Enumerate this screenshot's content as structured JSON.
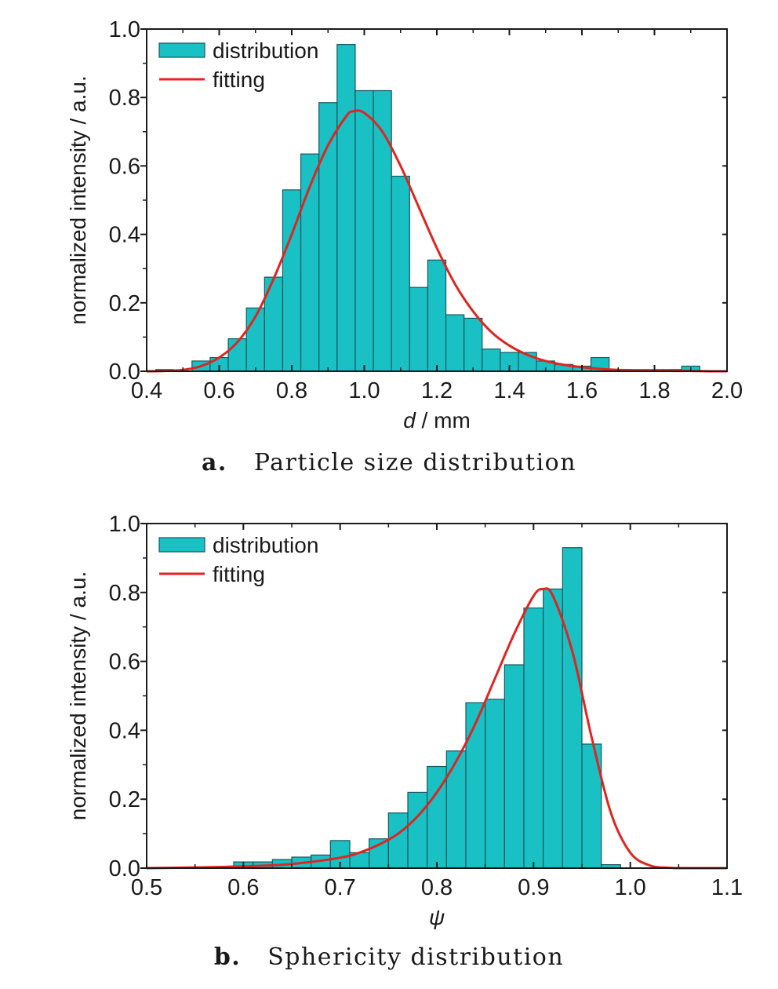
{
  "colors": {
    "bar_fill": "#19c0c4",
    "bar_stroke": "#16585c",
    "fit_line": "#e0241f",
    "axis": "#1a1a1a",
    "background": "#ffffff"
  },
  "chart_data": [
    {
      "type": "bar",
      "panel": "a",
      "caption_letter": "a.",
      "caption_text": "Particle size distribution",
      "xlabel_italic": "d",
      "xlabel_rest": " / mm",
      "ylabel": "normalized intensity / a.u.",
      "xlim": [
        0.4,
        2.0
      ],
      "ylim": [
        0.0,
        1.0
      ],
      "xticks": [
        "0.4",
        "0.6",
        "0.8",
        "1.0",
        "1.2",
        "1.4",
        "1.6",
        "1.8",
        "2.0"
      ],
      "yticks": [
        "0.0",
        "0.2",
        "0.4",
        "0.6",
        "0.8",
        "1.0"
      ],
      "legend": {
        "position": "top-left",
        "entries": [
          "distribution",
          "fitting"
        ]
      },
      "grid": false,
      "bin_width": 0.05,
      "bins": [
        {
          "x": 0.45,
          "y": 0.005
        },
        {
          "x": 0.55,
          "y": 0.03
        },
        {
          "x": 0.6,
          "y": 0.04
        },
        {
          "x": 0.65,
          "y": 0.095
        },
        {
          "x": 0.7,
          "y": 0.185
        },
        {
          "x": 0.75,
          "y": 0.275
        },
        {
          "x": 0.8,
          "y": 0.53
        },
        {
          "x": 0.85,
          "y": 0.635
        },
        {
          "x": 0.9,
          "y": 0.785
        },
        {
          "x": 0.95,
          "y": 0.955
        },
        {
          "x": 1.0,
          "y": 0.82
        },
        {
          "x": 1.05,
          "y": 0.82
        },
        {
          "x": 1.1,
          "y": 0.57
        },
        {
          "x": 1.15,
          "y": 0.245
        },
        {
          "x": 1.2,
          "y": 0.325
        },
        {
          "x": 1.25,
          "y": 0.165
        },
        {
          "x": 1.3,
          "y": 0.155
        },
        {
          "x": 1.35,
          "y": 0.065
        },
        {
          "x": 1.4,
          "y": 0.055
        },
        {
          "x": 1.45,
          "y": 0.055
        },
        {
          "x": 1.5,
          "y": 0.03
        },
        {
          "x": 1.55,
          "y": 0.02
        },
        {
          "x": 1.6,
          "y": 0.015
        },
        {
          "x": 1.65,
          "y": 0.04
        },
        {
          "x": 1.7,
          "y": 0.005
        },
        {
          "x": 1.75,
          "y": 0.005
        },
        {
          "x": 1.8,
          "y": 0.005
        },
        {
          "x": 1.85,
          "y": 0.005
        },
        {
          "x": 1.9,
          "y": 0.015
        }
      ],
      "fit": {
        "x": [
          0.4,
          0.45,
          0.5,
          0.55,
          0.6,
          0.65,
          0.7,
          0.75,
          0.8,
          0.85,
          0.9,
          0.95,
          0.97,
          1.0,
          1.05,
          1.1,
          1.15,
          1.2,
          1.25,
          1.3,
          1.35,
          1.4,
          1.45,
          1.5,
          1.55,
          1.6,
          1.65,
          1.7,
          1.75,
          1.8,
          1.85,
          1.9,
          1.95,
          2.0
        ],
        "y": [
          0.0,
          0.001,
          0.004,
          0.015,
          0.04,
          0.085,
          0.16,
          0.27,
          0.4,
          0.54,
          0.66,
          0.745,
          0.76,
          0.755,
          0.7,
          0.6,
          0.48,
          0.36,
          0.255,
          0.175,
          0.115,
          0.075,
          0.048,
          0.03,
          0.019,
          0.012,
          0.007,
          0.004,
          0.003,
          0.002,
          0.001,
          0.001,
          0.0,
          0.0
        ]
      }
    },
    {
      "type": "bar",
      "panel": "b",
      "caption_letter": "b.",
      "caption_text": "Sphericity distribution",
      "xlabel_italic": "ψ",
      "xlabel_rest": "",
      "ylabel": "normalized intensity / a.u.",
      "xlim": [
        0.5,
        1.1
      ],
      "ylim": [
        0.0,
        1.0
      ],
      "xticks": [
        "0.5",
        "0.6",
        "0.7",
        "0.8",
        "0.9",
        "1.0",
        "1.1"
      ],
      "yticks": [
        "0.0",
        "0.2",
        "0.4",
        "0.6",
        "0.8",
        "1.0"
      ],
      "legend": {
        "position": "top-left",
        "entries": [
          "distribution",
          "fitting"
        ]
      },
      "grid": false,
      "bin_width": 0.02,
      "bins": [
        {
          "x": 0.56,
          "y": 0.003
        },
        {
          "x": 0.58,
          "y": 0.003
        },
        {
          "x": 0.6,
          "y": 0.018
        },
        {
          "x": 0.62,
          "y": 0.018
        },
        {
          "x": 0.64,
          "y": 0.025
        },
        {
          "x": 0.66,
          "y": 0.032
        },
        {
          "x": 0.68,
          "y": 0.038
        },
        {
          "x": 0.7,
          "y": 0.08
        },
        {
          "x": 0.72,
          "y": 0.045
        },
        {
          "x": 0.74,
          "y": 0.085
        },
        {
          "x": 0.76,
          "y": 0.16
        },
        {
          "x": 0.78,
          "y": 0.22
        },
        {
          "x": 0.8,
          "y": 0.295
        },
        {
          "x": 0.82,
          "y": 0.34
        },
        {
          "x": 0.84,
          "y": 0.48
        },
        {
          "x": 0.86,
          "y": 0.49
        },
        {
          "x": 0.88,
          "y": 0.59
        },
        {
          "x": 0.9,
          "y": 0.755
        },
        {
          "x": 0.92,
          "y": 0.81
        },
        {
          "x": 0.94,
          "y": 0.93
        },
        {
          "x": 0.96,
          "y": 0.36
        },
        {
          "x": 0.98,
          "y": 0.01
        }
      ],
      "fit": {
        "x": [
          0.5,
          0.55,
          0.6,
          0.65,
          0.7,
          0.72,
          0.74,
          0.76,
          0.78,
          0.8,
          0.82,
          0.84,
          0.86,
          0.88,
          0.9,
          0.91,
          0.92,
          0.94,
          0.96,
          0.98,
          1.0,
          1.02,
          1.04,
          1.06,
          1.1
        ],
        "y": [
          0.0,
          0.002,
          0.005,
          0.012,
          0.03,
          0.045,
          0.068,
          0.1,
          0.15,
          0.22,
          0.31,
          0.42,
          0.55,
          0.68,
          0.79,
          0.81,
          0.79,
          0.63,
          0.38,
          0.16,
          0.045,
          0.008,
          0.001,
          0.0,
          0.0
        ]
      }
    }
  ]
}
